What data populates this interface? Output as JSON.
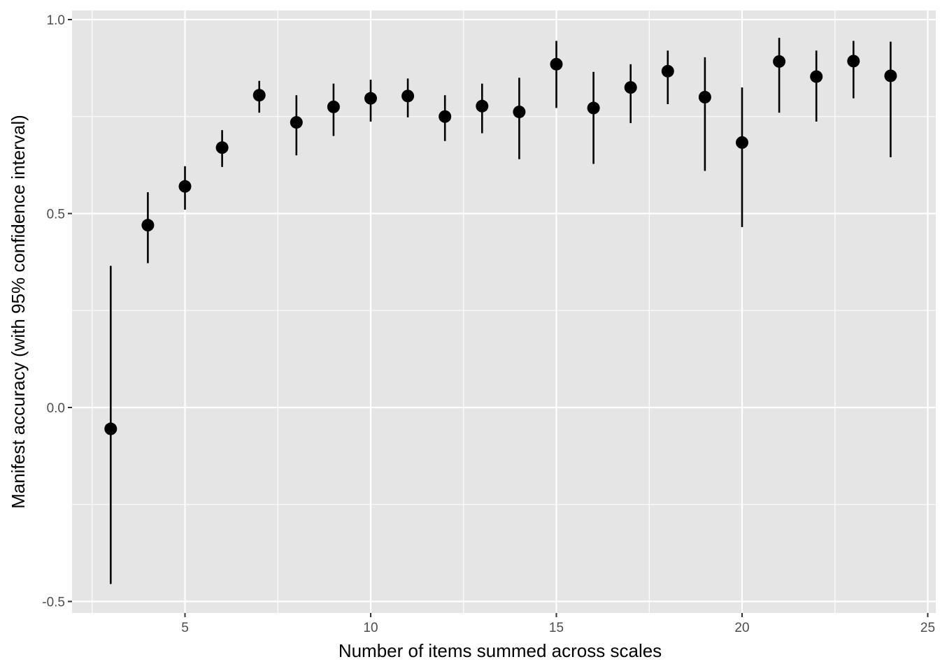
{
  "chart_data": {
    "type": "scatter",
    "title": "",
    "xlabel": "Number of items summed across scales",
    "ylabel": "Manifest accuracy (with 95% confidence interval)",
    "xlim": [
      2.2,
      25.0
    ],
    "ylim": [
      -0.525,
      1.025
    ],
    "x_ticks": [
      5,
      10,
      15,
      20,
      25
    ],
    "x_tick_labels": [
      "5",
      "10",
      "15",
      "20",
      "25"
    ],
    "y_ticks": [
      -0.5,
      0.0,
      0.5,
      1.0
    ],
    "y_tick_labels": [
      "-0.5",
      "0.0",
      "0.5",
      "1.0"
    ],
    "grid": true,
    "colors": {
      "panel": "#e5e5e5",
      "grid": "#ffffff",
      "marks": "#000000",
      "tick_text": "#4d4d4d"
    },
    "points": [
      {
        "x": 3,
        "y": -0.055,
        "lower": -0.455,
        "upper": 0.365
      },
      {
        "x": 4,
        "y": 0.47,
        "lower": 0.372,
        "upper": 0.555
      },
      {
        "x": 5,
        "y": 0.57,
        "lower": 0.51,
        "upper": 0.622
      },
      {
        "x": 6,
        "y": 0.67,
        "lower": 0.62,
        "upper": 0.715
      },
      {
        "x": 7,
        "y": 0.805,
        "lower": 0.76,
        "upper": 0.842
      },
      {
        "x": 8,
        "y": 0.735,
        "lower": 0.65,
        "upper": 0.805
      },
      {
        "x": 9,
        "y": 0.775,
        "lower": 0.7,
        "upper": 0.835
      },
      {
        "x": 10,
        "y": 0.797,
        "lower": 0.737,
        "upper": 0.845
      },
      {
        "x": 11,
        "y": 0.803,
        "lower": 0.748,
        "upper": 0.848
      },
      {
        "x": 12,
        "y": 0.75,
        "lower": 0.687,
        "upper": 0.805
      },
      {
        "x": 13,
        "y": 0.777,
        "lower": 0.707,
        "upper": 0.835
      },
      {
        "x": 14,
        "y": 0.762,
        "lower": 0.64,
        "upper": 0.85
      },
      {
        "x": 15,
        "y": 0.885,
        "lower": 0.772,
        "upper": 0.945
      },
      {
        "x": 16,
        "y": 0.772,
        "lower": 0.628,
        "upper": 0.865
      },
      {
        "x": 17,
        "y": 0.825,
        "lower": 0.733,
        "upper": 0.885
      },
      {
        "x": 18,
        "y": 0.867,
        "lower": 0.782,
        "upper": 0.92
      },
      {
        "x": 19,
        "y": 0.8,
        "lower": 0.61,
        "upper": 0.903
      },
      {
        "x": 20,
        "y": 0.683,
        "lower": 0.465,
        "upper": 0.825
      },
      {
        "x": 21,
        "y": 0.892,
        "lower": 0.76,
        "upper": 0.953
      },
      {
        "x": 22,
        "y": 0.853,
        "lower": 0.737,
        "upper": 0.92
      },
      {
        "x": 23,
        "y": 0.893,
        "lower": 0.797,
        "upper": 0.945
      },
      {
        "x": 24,
        "y": 0.855,
        "lower": 0.645,
        "upper": 0.943
      }
    ]
  }
}
